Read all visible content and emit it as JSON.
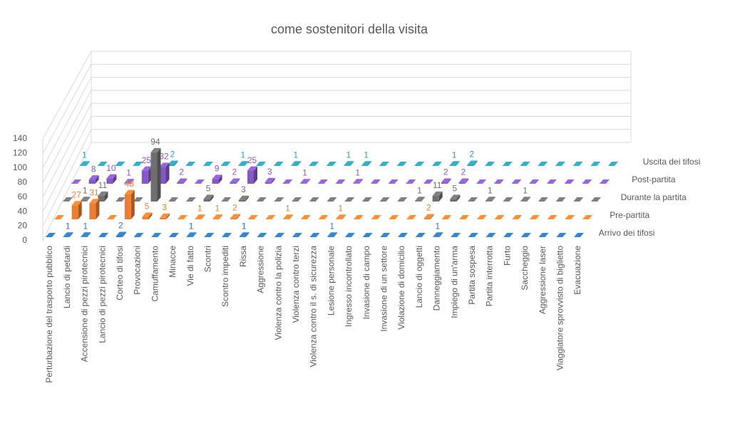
{
  "chart_data": {
    "type": "bar3d",
    "title": "come sostenitori della visita",
    "categories": [
      "Perturbazione del trasporto pubblico",
      "Lancio di petardi",
      "Accensione di pezzi pirotecnici",
      "Lancio di pezzi pirotecnici",
      "Corteo di tifosi",
      "Provocazioni",
      "Camuffamento",
      "Minacce",
      "Vie di fatto",
      "Scontri",
      "Scontro impediti",
      "Rissa",
      "Aggressione",
      "Violenza contro la polizia",
      "Violenza contro terzi",
      "Violenza contro il s. di sicurezza",
      "Lesione personale",
      "Ingresso incontrollato",
      "Invasione di campo",
      "Invasione di un settore",
      "Violazione di domicilio",
      "Lancio di oggetti",
      "Danneggiamento",
      "Impiego di un'arma",
      "Partita sospesa",
      "Partita interrotta",
      "Furto",
      "Saccheggio",
      "Aggressione laser",
      "Viaggiatore sprovvisto di biglietto",
      "Evacuazione"
    ],
    "series": [
      {
        "name": "Arrivo dei tifosi",
        "color": "#2e75b6",
        "values": [
          0,
          1,
          1,
          0,
          2,
          0,
          0,
          0,
          1,
          0,
          0,
          1,
          0,
          0,
          0,
          0,
          1,
          0,
          0,
          0,
          0,
          0,
          1,
          0,
          0,
          0,
          0,
          0,
          0,
          0,
          0
        ]
      },
      {
        "name": "Pre-partita",
        "color": "#ed7d31",
        "values": [
          0,
          27,
          31,
          0,
          48,
          5,
          3,
          0,
          1,
          1,
          2,
          0,
          0,
          1,
          0,
          0,
          1,
          0,
          0,
          0,
          0,
          2,
          0,
          0,
          0,
          0,
          0,
          0,
          0,
          0,
          0
        ]
      },
      {
        "name": "Durante la partita",
        "color": "#6f6f6f",
        "values": [
          0,
          1,
          11,
          0,
          0,
          94,
          0,
          0,
          5,
          0,
          3,
          0,
          0,
          0,
          0,
          0,
          0,
          0,
          0,
          0,
          1,
          11,
          5,
          0,
          1,
          0,
          1,
          0,
          0,
          0,
          0
        ]
      },
      {
        "name": "Post-partita",
        "color": "#8459c4",
        "values": [
          0,
          8,
          10,
          1,
          25,
          32,
          2,
          0,
          9,
          2,
          25,
          3,
          0,
          1,
          0,
          0,
          1,
          0,
          0,
          0,
          0,
          2,
          2,
          0,
          0,
          0,
          0,
          0,
          0,
          0,
          0
        ]
      },
      {
        "name": "Uscita dei tifosi",
        "color": "#2b9bb0",
        "values": [
          1,
          0,
          0,
          0,
          0,
          2,
          0,
          0,
          0,
          1,
          0,
          0,
          1,
          0,
          0,
          1,
          1,
          0,
          0,
          0,
          0,
          1,
          2,
          0,
          0,
          0,
          0,
          0,
          0,
          0,
          0
        ]
      }
    ],
    "ylim": [
      0,
      140
    ],
    "yticks": [
      0,
      20,
      40,
      60,
      80,
      100,
      120,
      140
    ],
    "grid": true
  }
}
